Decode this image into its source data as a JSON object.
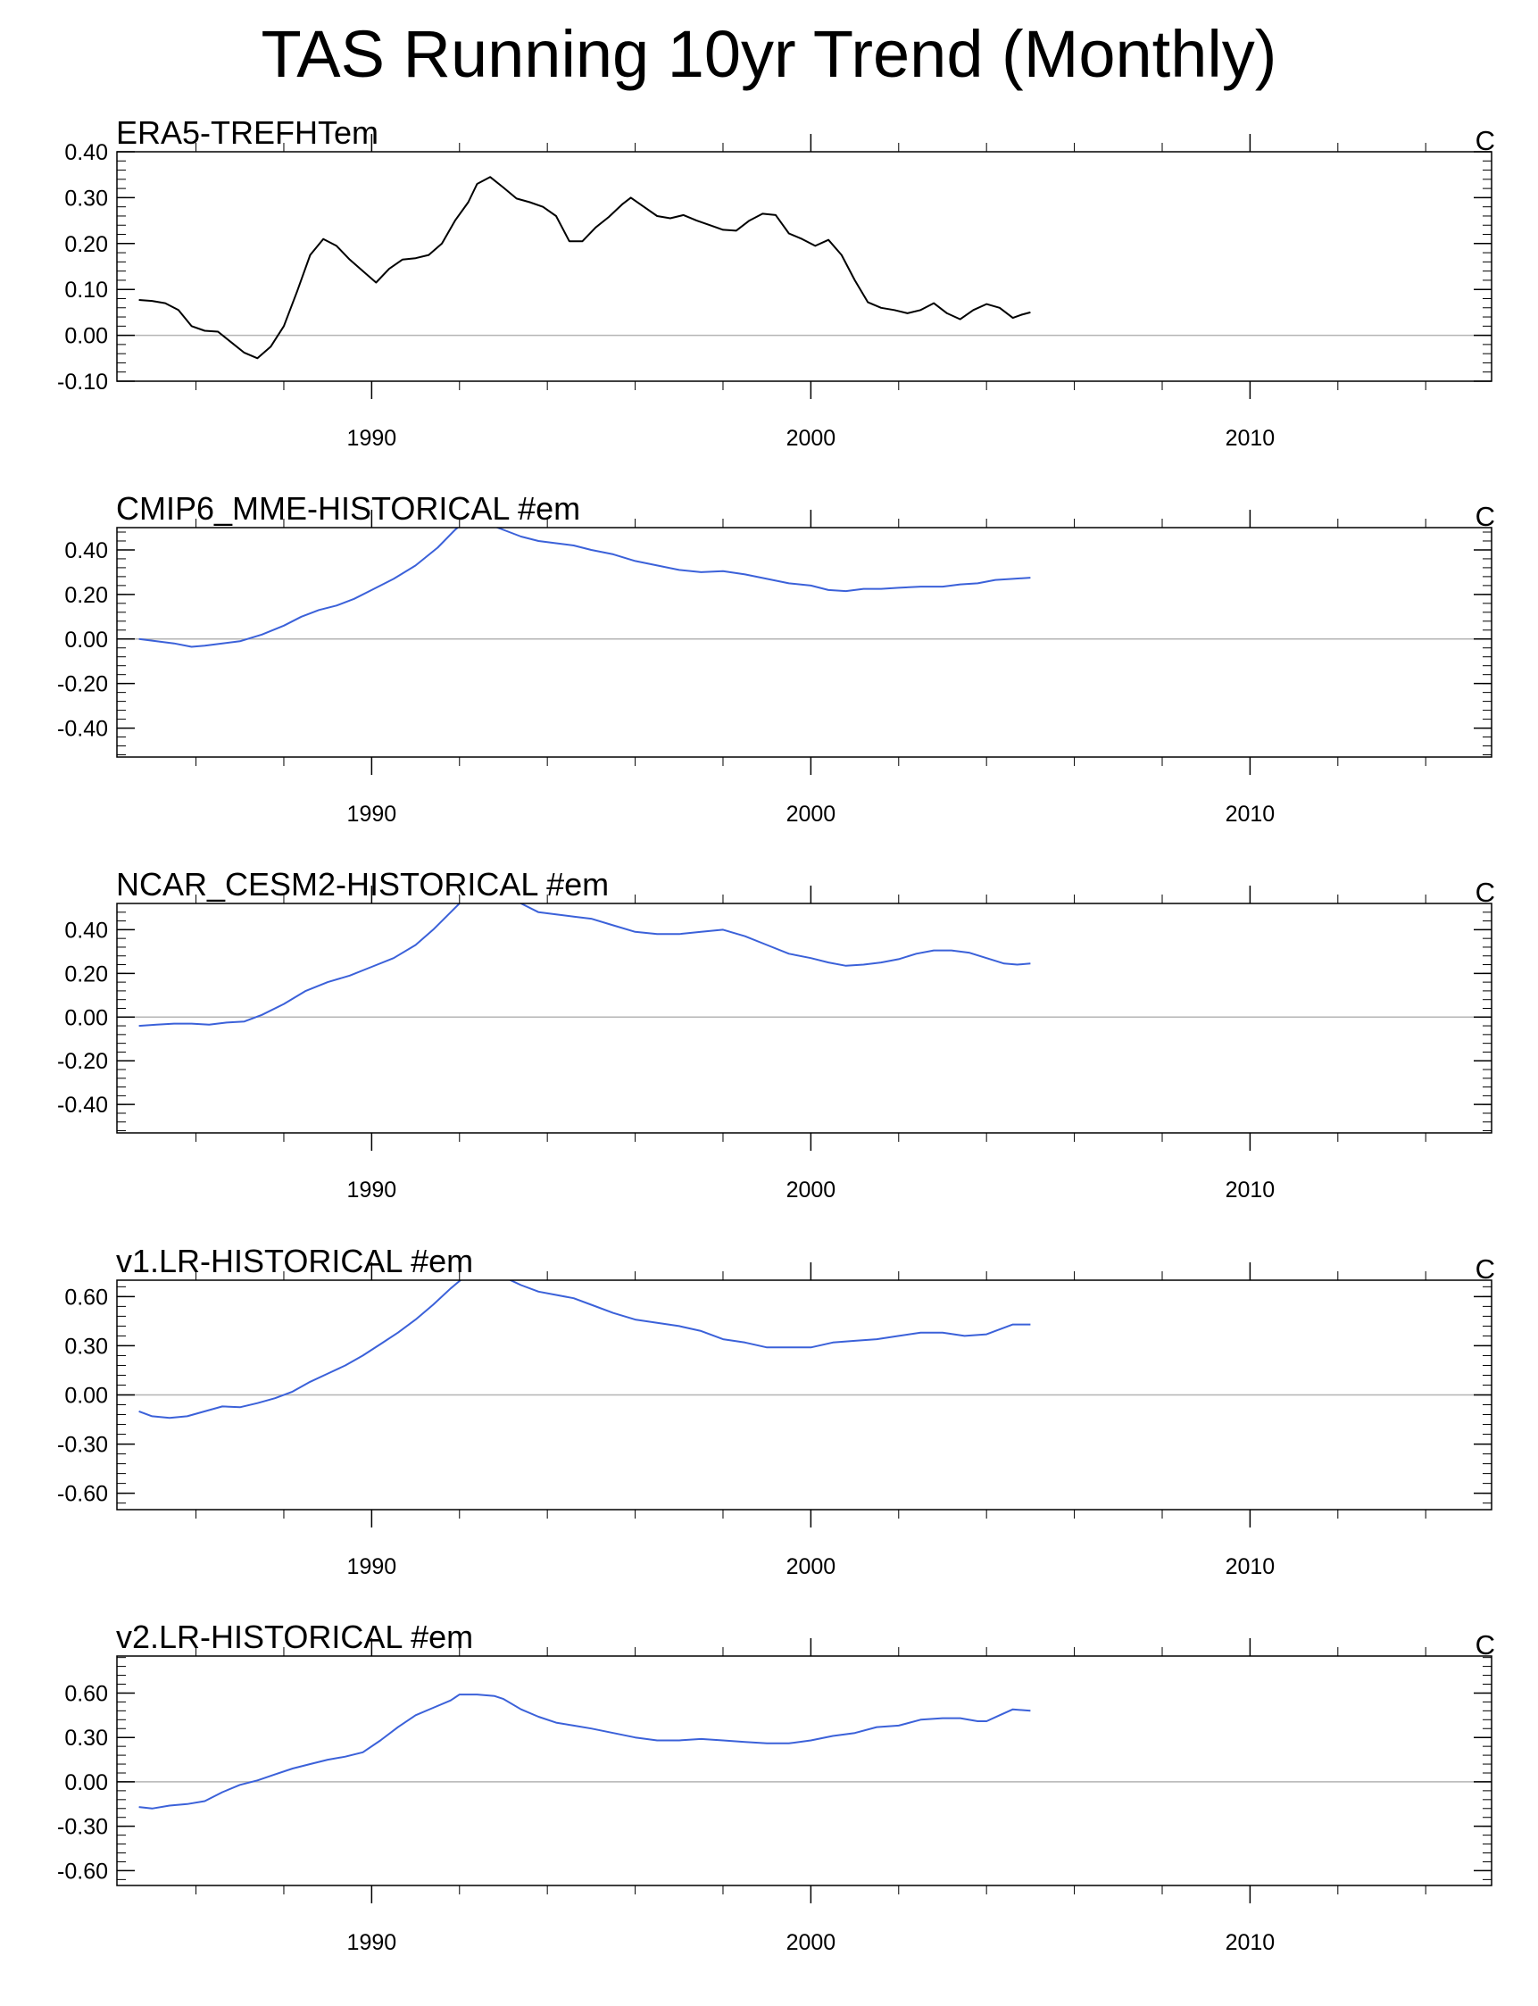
{
  "title": "TAS Running 10yr Trend (Monthly)",
  "colors": {
    "obs": "#000000",
    "model": "#3b61d9",
    "zero": "#b4b4b4",
    "frame": "#000000"
  },
  "chart_data": [
    {
      "type": "line",
      "title": "ERA5-TREFHTem",
      "units": "C",
      "color": "#000000",
      "xlim": [
        1984.2,
        2015.5
      ],
      "ylim": [
        -0.1,
        0.4
      ],
      "yticks": [
        -0.1,
        0.0,
        0.1,
        0.2,
        0.3,
        0.4
      ],
      "ytick_labels": [
        "-0.10",
        "0.00",
        "0.10",
        "0.20",
        "0.30",
        "0.40"
      ],
      "xticks": [
        1990,
        2000,
        2010
      ],
      "xtick_labels": [
        "1990",
        "2000",
        "2010"
      ],
      "x": [
        1984.7,
        1985.0,
        1985.3,
        1985.6,
        1985.9,
        1986.2,
        1986.5,
        1986.8,
        1987.1,
        1987.4,
        1987.7,
        1988.0,
        1988.3,
        1988.6,
        1988.9,
        1989.2,
        1989.5,
        1989.8,
        1990.1,
        1990.4,
        1990.7,
        1991.0,
        1991.3,
        1991.6,
        1991.9,
        1992.2,
        1992.4,
        1992.7,
        1993.0,
        1993.3,
        1993.6,
        1993.9,
        1994.2,
        1994.5,
        1994.8,
        1995.1,
        1995.4,
        1995.7,
        1995.9,
        1996.2,
        1996.5,
        1996.8,
        1997.1,
        1997.4,
        1997.7,
        1998.0,
        1998.3,
        1998.6,
        1998.9,
        1999.2,
        1999.5,
        1999.8,
        2000.1,
        2000.4,
        2000.7,
        2001.0,
        2001.3,
        2001.6,
        2001.9,
        2002.2,
        2002.5,
        2002.8,
        2003.1,
        2003.4,
        2003.7,
        2004.0,
        2004.3,
        2004.6,
        2004.8,
        2005.0
      ],
      "y": [
        0.077,
        0.075,
        0.07,
        0.055,
        0.02,
        0.01,
        0.008,
        -0.015,
        -0.038,
        -0.05,
        -0.025,
        0.02,
        0.095,
        0.175,
        0.21,
        0.195,
        0.165,
        0.14,
        0.115,
        0.145,
        0.165,
        0.168,
        0.175,
        0.2,
        0.25,
        0.29,
        0.33,
        0.345,
        0.322,
        0.298,
        0.29,
        0.28,
        0.26,
        0.205,
        0.205,
        0.235,
        0.258,
        0.285,
        0.3,
        0.28,
        0.26,
        0.255,
        0.262,
        0.25,
        0.24,
        0.23,
        0.228,
        0.25,
        0.265,
        0.262,
        0.222,
        0.21,
        0.195,
        0.208,
        0.175,
        0.12,
        0.072,
        0.06,
        0.055,
        0.048,
        0.055,
        0.07,
        0.048,
        0.035,
        0.055,
        0.068,
        0.06,
        0.038,
        0.045,
        0.05
      ]
    },
    {
      "type": "line",
      "title": "CMIP6_MME-HISTORICAL  #em",
      "units": "C",
      "color": "#3b61d9",
      "xlim": [
        1984.2,
        2015.5
      ],
      "ylim": [
        -0.53,
        0.5
      ],
      "yticks": [
        -0.4,
        -0.2,
        0.0,
        0.2,
        0.4
      ],
      "ytick_labels": [
        "-0.40",
        "-0.20",
        "0.00",
        "0.20",
        "0.40"
      ],
      "xticks": [
        1990,
        2000,
        2010
      ],
      "xtick_labels": [
        "1990",
        "2000",
        "2010"
      ],
      "x": [
        1984.7,
        1985.1,
        1985.5,
        1985.9,
        1986.2,
        1986.6,
        1987.0,
        1987.5,
        1988.0,
        1988.4,
        1988.8,
        1989.2,
        1989.6,
        1990.0,
        1990.5,
        1991.0,
        1991.5,
        1991.9,
        1992.2,
        1992.6,
        1993.0,
        1993.4,
        1993.8,
        1994.2,
        1994.6,
        1995.0,
        1995.5,
        1996.0,
        1996.5,
        1997.0,
        1997.5,
        1998.0,
        1998.5,
        1999.0,
        1999.5,
        2000.0,
        2000.4,
        2000.8,
        2001.2,
        2001.6,
        2002.0,
        2002.5,
        2003.0,
        2003.4,
        2003.8,
        2004.2,
        2004.6,
        2005.0
      ],
      "y": [
        0.0,
        -0.01,
        -0.02,
        -0.035,
        -0.03,
        -0.02,
        -0.01,
        0.02,
        0.06,
        0.1,
        0.13,
        0.15,
        0.18,
        0.22,
        0.27,
        0.33,
        0.41,
        0.49,
        0.54,
        0.52,
        0.49,
        0.46,
        0.44,
        0.43,
        0.42,
        0.4,
        0.38,
        0.35,
        0.33,
        0.31,
        0.3,
        0.305,
        0.29,
        0.27,
        0.25,
        0.24,
        0.22,
        0.215,
        0.225,
        0.225,
        0.23,
        0.235,
        0.235,
        0.245,
        0.25,
        0.265,
        0.27,
        0.275
      ]
    },
    {
      "type": "line",
      "title": "NCAR_CESM2-HISTORICAL  #em",
      "units": "C",
      "color": "#3b61d9",
      "xlim": [
        1984.2,
        2015.5
      ],
      "ylim": [
        -0.53,
        0.52
      ],
      "yticks": [
        -0.4,
        -0.2,
        0.0,
        0.2,
        0.4
      ],
      "ytick_labels": [
        "-0.40",
        "-0.20",
        "0.00",
        "0.20",
        "0.40"
      ],
      "xticks": [
        1990,
        2000,
        2010
      ],
      "xtick_labels": [
        "1990",
        "2000",
        "2010"
      ],
      "x": [
        1984.7,
        1985.1,
        1985.5,
        1985.9,
        1986.3,
        1986.7,
        1987.1,
        1987.5,
        1988.0,
        1988.5,
        1989.0,
        1989.5,
        1990.0,
        1990.5,
        1991.0,
        1991.4,
        1991.8,
        1992.2,
        1992.6,
        1993.0,
        1993.4,
        1993.8,
        1994.2,
        1994.6,
        1995.0,
        1995.5,
        1996.0,
        1996.5,
        1997.0,
        1997.5,
        1998.0,
        1998.5,
        1999.0,
        1999.5,
        2000.0,
        2000.4,
        2000.8,
        2001.2,
        2001.6,
        2002.0,
        2002.4,
        2002.8,
        2003.2,
        2003.6,
        2004.0,
        2004.4,
        2004.7,
        2005.0
      ],
      "y": [
        -0.04,
        -0.035,
        -0.03,
        -0.03,
        -0.035,
        -0.025,
        -0.02,
        0.01,
        0.06,
        0.12,
        0.16,
        0.19,
        0.23,
        0.27,
        0.33,
        0.4,
        0.48,
        0.56,
        0.6,
        0.58,
        0.52,
        0.48,
        0.47,
        0.46,
        0.45,
        0.42,
        0.39,
        0.38,
        0.38,
        0.39,
        0.4,
        0.37,
        0.33,
        0.29,
        0.27,
        0.25,
        0.235,
        0.24,
        0.25,
        0.265,
        0.29,
        0.305,
        0.305,
        0.295,
        0.27,
        0.245,
        0.24,
        0.245
      ]
    },
    {
      "type": "line",
      "title": "v1.LR-HISTORICAL  #em",
      "units": "C",
      "color": "#3b61d9",
      "xlim": [
        1984.2,
        2015.5
      ],
      "ylim": [
        -0.7,
        0.7
      ],
      "yticks": [
        -0.6,
        -0.3,
        0.0,
        0.3,
        0.6
      ],
      "ytick_labels": [
        "-0.60",
        "-0.30",
        "0.00",
        "0.30",
        "0.60"
      ],
      "xticks": [
        1990,
        2000,
        2010
      ],
      "xtick_labels": [
        "1990",
        "2000",
        "2010"
      ],
      "x": [
        1984.7,
        1985.0,
        1985.4,
        1985.8,
        1986.2,
        1986.6,
        1987.0,
        1987.4,
        1987.8,
        1988.2,
        1988.6,
        1989.0,
        1989.4,
        1989.8,
        1990.2,
        1990.6,
        1991.0,
        1991.4,
        1991.8,
        1992.2,
        1992.6,
        1993.0,
        1993.4,
        1993.8,
        1994.2,
        1994.6,
        1995.0,
        1995.5,
        1996.0,
        1996.5,
        1997.0,
        1997.5,
        1998.0,
        1998.5,
        1999.0,
        1999.5,
        2000.0,
        2000.5,
        2001.0,
        2001.5,
        2002.0,
        2002.5,
        2003.0,
        2003.5,
        2004.0,
        2004.3,
        2004.6,
        2005.0
      ],
      "y": [
        -0.1,
        -0.13,
        -0.14,
        -0.13,
        -0.1,
        -0.07,
        -0.075,
        -0.05,
        -0.02,
        0.02,
        0.08,
        0.13,
        0.18,
        0.24,
        0.31,
        0.38,
        0.46,
        0.55,
        0.65,
        0.74,
        0.78,
        0.72,
        0.67,
        0.63,
        0.61,
        0.59,
        0.55,
        0.5,
        0.46,
        0.44,
        0.42,
        0.39,
        0.34,
        0.32,
        0.29,
        0.29,
        0.29,
        0.32,
        0.33,
        0.34,
        0.36,
        0.38,
        0.38,
        0.36,
        0.37,
        0.4,
        0.43,
        0.43
      ]
    },
    {
      "type": "line",
      "title": "v2.LR-HISTORICAL  #em",
      "units": "C",
      "color": "#3b61d9",
      "xlim": [
        1984.2,
        2015.5
      ],
      "ylim": [
        -0.7,
        0.85
      ],
      "yticks": [
        -0.6,
        -0.3,
        0.0,
        0.3,
        0.6
      ],
      "ytick_labels": [
        "-0.60",
        "-0.30",
        "0.00",
        "0.30",
        "0.60"
      ],
      "xticks": [
        1990,
        2000,
        2010
      ],
      "xtick_labels": [
        "1990",
        "2000",
        "2010"
      ],
      "x": [
        1984.7,
        1985.0,
        1985.4,
        1985.8,
        1986.2,
        1986.6,
        1987.0,
        1987.4,
        1987.8,
        1988.2,
        1988.6,
        1989.0,
        1989.4,
        1989.8,
        1990.2,
        1990.6,
        1991.0,
        1991.4,
        1991.8,
        1992.0,
        1992.4,
        1992.8,
        1993.0,
        1993.4,
        1993.8,
        1994.2,
        1994.6,
        1995.0,
        1995.5,
        1996.0,
        1996.5,
        1997.0,
        1997.5,
        1998.0,
        1998.5,
        1999.0,
        1999.5,
        2000.0,
        2000.5,
        2001.0,
        2001.5,
        2002.0,
        2002.5,
        2003.0,
        2003.4,
        2003.8,
        2004.0,
        2004.3,
        2004.6,
        2005.0
      ],
      "y": [
        -0.17,
        -0.18,
        -0.16,
        -0.15,
        -0.13,
        -0.07,
        -0.02,
        0.01,
        0.05,
        0.09,
        0.12,
        0.15,
        0.17,
        0.2,
        0.28,
        0.37,
        0.45,
        0.5,
        0.55,
        0.59,
        0.59,
        0.58,
        0.56,
        0.49,
        0.44,
        0.4,
        0.38,
        0.36,
        0.33,
        0.3,
        0.28,
        0.28,
        0.29,
        0.28,
        0.27,
        0.26,
        0.26,
        0.28,
        0.31,
        0.33,
        0.37,
        0.38,
        0.42,
        0.43,
        0.43,
        0.41,
        0.41,
        0.45,
        0.49,
        0.48
      ]
    }
  ]
}
